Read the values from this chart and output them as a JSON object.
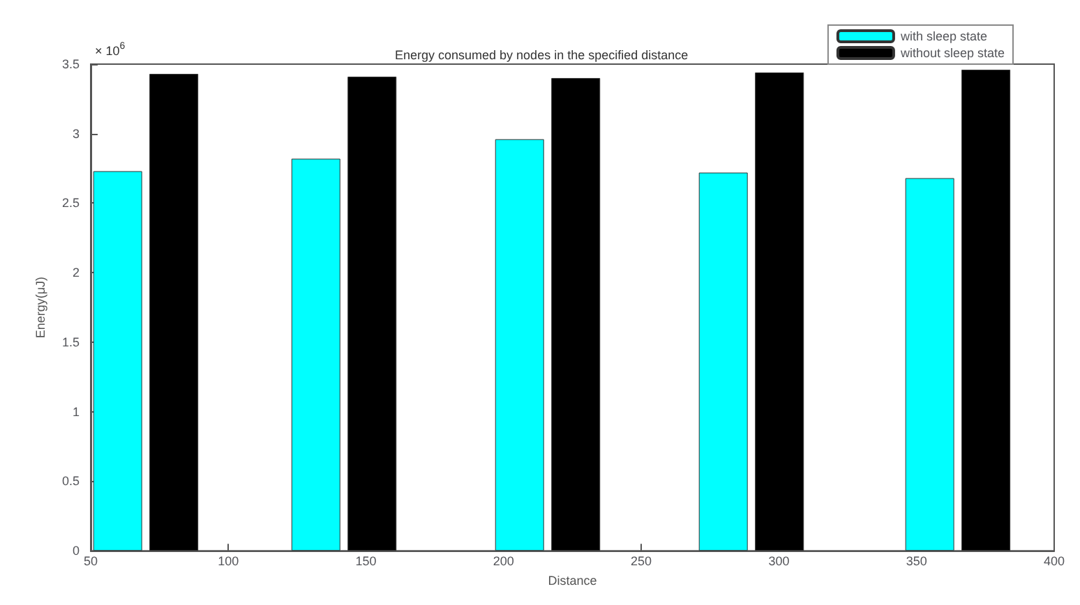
{
  "chart_data": {
    "type": "bar",
    "title": "Energy consumed by nodes in the specified distance",
    "xlabel": "Distance",
    "ylabel": "Energy(μJ)",
    "annotations": [
      "× 10$^{6}$"
    ],
    "x": [
      70,
      142,
      216,
      290,
      365
    ],
    "series": [
      {
        "name": "with sleep state",
        "color": "#00ffff",
        "values": [
          2.73,
          2.82,
          2.96,
          2.72,
          2.68
        ]
      },
      {
        "name": "without sleep state",
        "color": "#000000",
        "values": [
          3.43,
          3.41,
          3.4,
          3.44,
          3.46
        ]
      }
    ],
    "xlim": [
      50,
      400
    ],
    "xticks": [
      50,
      100,
      150,
      200,
      250,
      300,
      350,
      400
    ],
    "ylim": [
      0,
      3.5
    ],
    "yticks": [
      0,
      0.5,
      1,
      1.5,
      2,
      2.5,
      3,
      3.5
    ],
    "grid": false,
    "legend": "top right"
  }
}
